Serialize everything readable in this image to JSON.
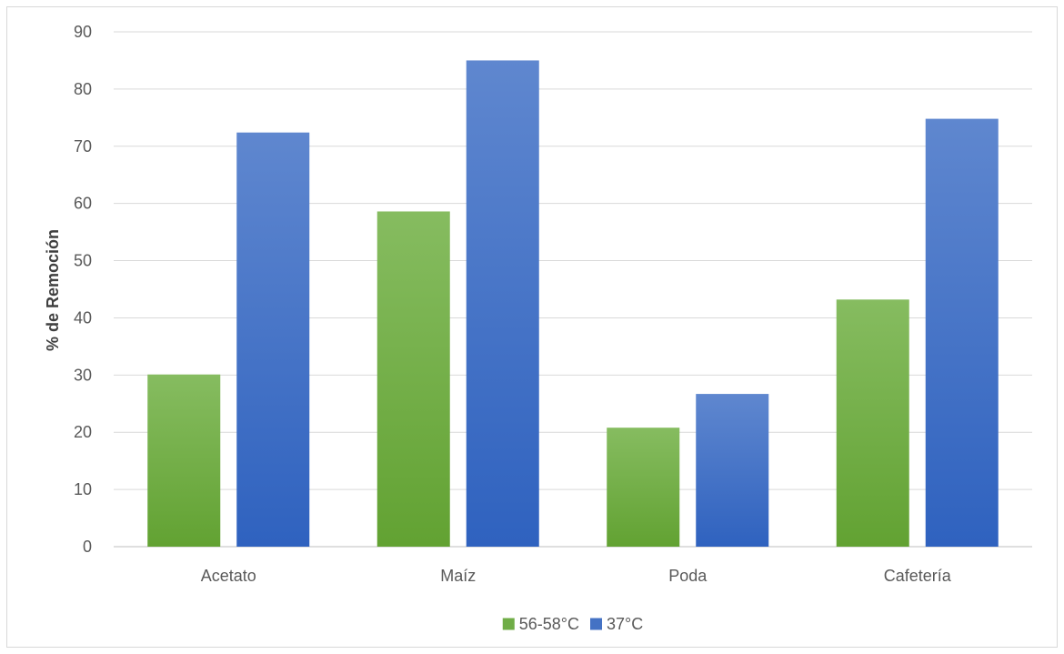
{
  "chart_data": {
    "type": "bar",
    "categories": [
      "Acetato",
      "Maíz",
      "Poda",
      "Cafetería"
    ],
    "series": [
      {
        "name": "56-58°C",
        "values": [
          30.1,
          58.6,
          20.8,
          43.2
        ],
        "color": "#70ad47"
      },
      {
        "name": "37°C",
        "values": [
          72.4,
          85.0,
          26.7,
          74.8
        ],
        "color": "#4472c4"
      }
    ],
    "title": "",
    "xlabel": "",
    "ylabel": "% de Remoción",
    "ylim": [
      0,
      90
    ],
    "yticks": [
      0,
      10,
      20,
      30,
      40,
      50,
      60,
      70,
      80,
      90
    ],
    "grid": true,
    "legend_position": "bottom"
  }
}
